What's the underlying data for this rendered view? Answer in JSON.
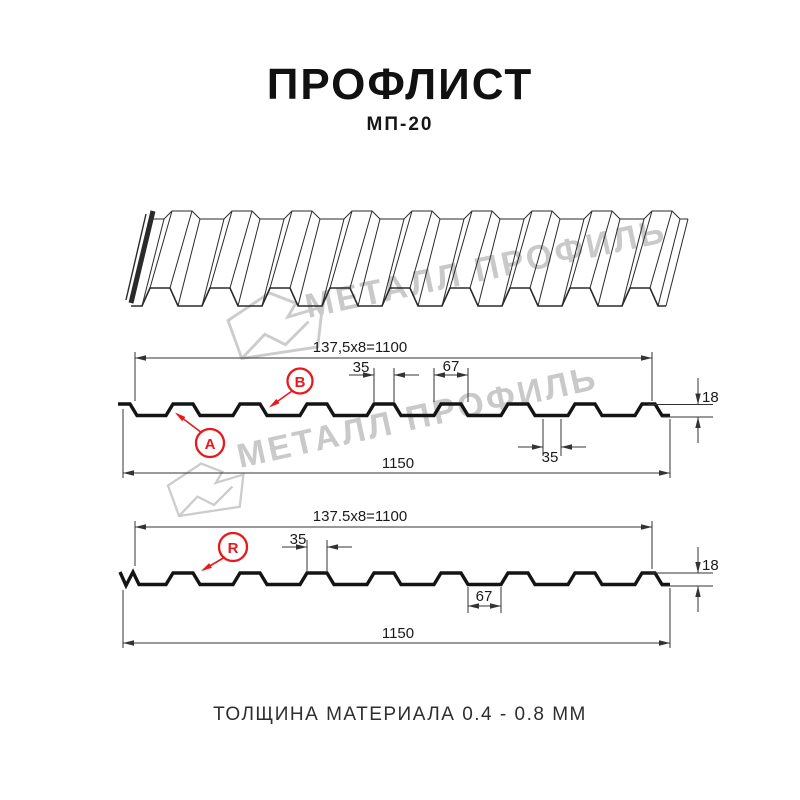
{
  "header": {
    "title": "ПРОФЛИСТ",
    "subtitle": "МП-20"
  },
  "watermark": {
    "text": "МЕТАЛЛ ПРОФИЛЬ"
  },
  "drawing": {
    "section_top": {
      "dim_width_top": "137,5x8=1100",
      "dim_rib_top": "35",
      "dim_rib_base": "67",
      "dim_height": "18",
      "dim_valley_bottom": "35",
      "dim_overall_width": "1150",
      "label_a": "A",
      "label_b": "B"
    },
    "section_bottom": {
      "dim_width_top": "137.5x8=1100",
      "dim_rib_top": "35",
      "dim_valley_base": "67",
      "dim_height": "18",
      "dim_overall_width": "1150",
      "label_r": "R"
    },
    "profile_params": {
      "rib_count": 8,
      "period_mm": 137.5,
      "rib_top_mm": 35,
      "rib_base_mm": 67,
      "height_mm": 18,
      "covering_width_mm": 1100,
      "overall_width_mm": 1150
    }
  },
  "footer": {
    "text": "ТОЛЩИНА МАТЕРИАЛА 0.4 - 0.8 ММ"
  },
  "colors": {
    "accent_red": "#e8191d",
    "line_dark": "#1a1a1a",
    "watermark_gray": "#c9c9c9"
  }
}
